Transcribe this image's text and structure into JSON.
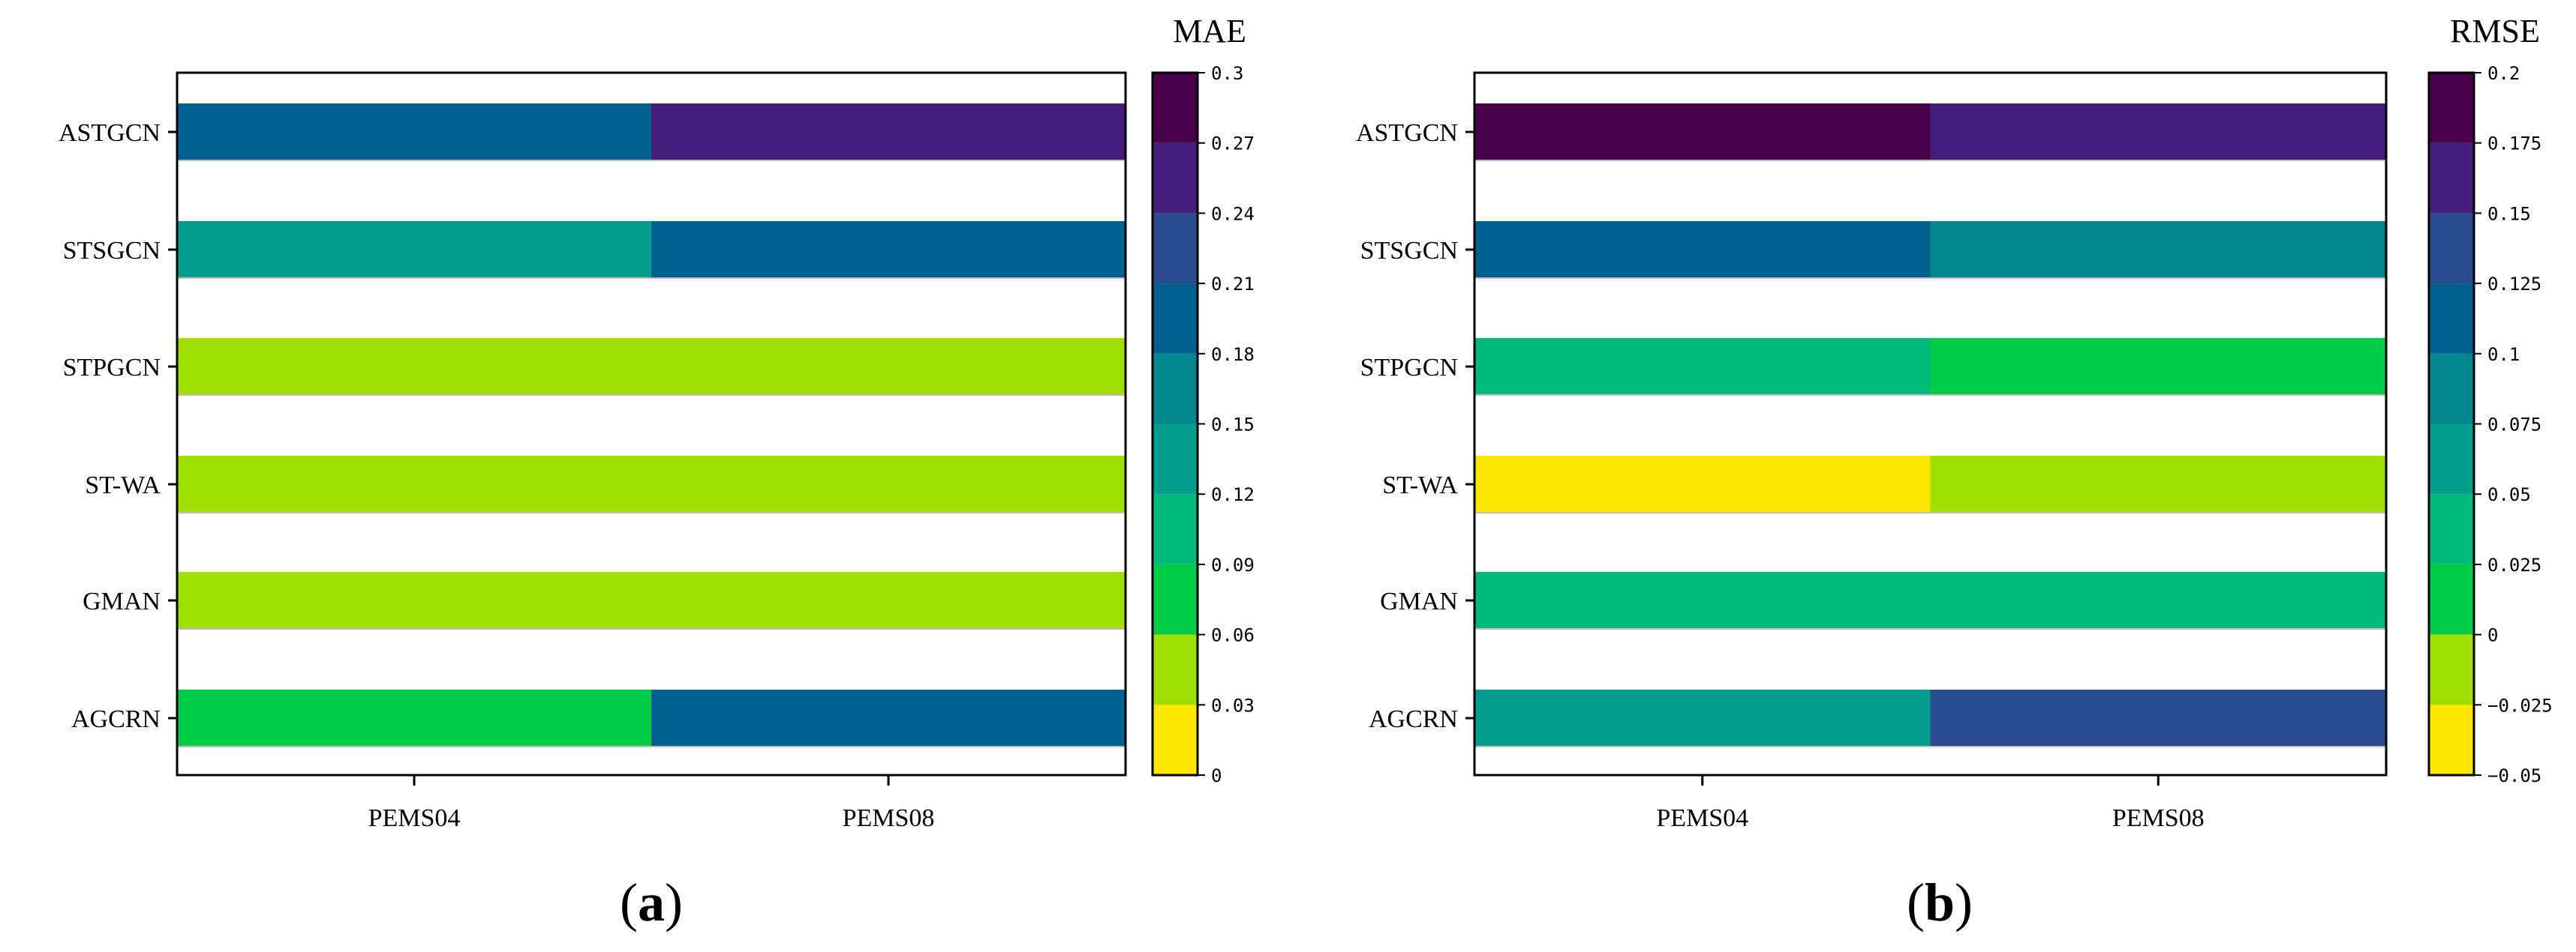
{
  "chart_data": [
    {
      "type": "heatmap",
      "panel": "a",
      "panel_label": "(a)",
      "panel_open": "(",
      "panel_letter": "a",
      "panel_close": ")",
      "colorbar_title": "MAE",
      "rows": [
        "ASTGCN",
        "STSGCN",
        "STPGCN",
        "ST-WA",
        "GMAN",
        "AGCRN"
      ],
      "columns": [
        "PEMS04",
        "PEMS08"
      ],
      "values": [
        [
          0.195,
          0.255
        ],
        [
          0.135,
          0.195
        ],
        [
          0.045,
          0.045
        ],
        [
          0.045,
          0.045
        ],
        [
          0.045,
          0.045
        ],
        [
          0.075,
          0.195
        ]
      ],
      "colorbar": {
        "min": 0,
        "max": 0.3,
        "levels": 10,
        "tick_values": [
          0,
          0.03,
          0.06,
          0.09,
          0.12,
          0.15,
          0.18,
          0.21,
          0.24,
          0.27,
          0.3
        ],
        "tick_labels": [
          "0",
          "0.03",
          "0.06",
          "0.09",
          "0.12",
          "0.15",
          "0.18",
          "0.21",
          "0.24",
          "0.27",
          "0.3"
        ]
      }
    },
    {
      "type": "heatmap",
      "panel": "b",
      "panel_label": "(b)",
      "panel_open": "(",
      "panel_letter": "b",
      "panel_close": ")",
      "colorbar_title": "RMSE",
      "rows": [
        "ASTGCN",
        "STSGCN",
        "STPGCN",
        "ST-WA",
        "GMAN",
        "AGCRN"
      ],
      "columns": [
        "PEMS04",
        "PEMS08"
      ],
      "values": [
        [
          0.1875,
          0.1625
        ],
        [
          0.1125,
          0.0875
        ],
        [
          0.0375,
          0.0125
        ],
        [
          -0.0375,
          -0.0125
        ],
        [
          0.0375,
          0.0375
        ],
        [
          0.0625,
          0.1375
        ]
      ],
      "colorbar": {
        "min": -0.05,
        "max": 0.2,
        "levels": 10,
        "tick_values": [
          -0.05,
          -0.025,
          0,
          0.025,
          0.05,
          0.075,
          0.1,
          0.125,
          0.15,
          0.175,
          0.2
        ],
        "tick_labels": [
          "−0.05",
          "−0.025",
          "0",
          "0.025",
          "0.05",
          "0.075",
          "0.1",
          "0.125",
          "0.15",
          "0.175",
          "0.2"
        ]
      }
    }
  ],
  "colors": {
    "viridis_levels": [
      "#fde725",
      "#a0da39",
      "#4ac16d",
      "#1fa187",
      "#277f8e",
      "#365c8d",
      "#46327e",
      "#440154"
    ],
    "ten_level_palette": [
      "#fde700",
      "#a0df00",
      "#00cc4a",
      "#00b87a",
      "#049c8d",
      "#03878d",
      "#005f8c",
      "#2c4a8e",
      "#441e7a",
      "#48004c"
    ],
    "axis_line": "#000000",
    "cell_separator": "#bfbfbf"
  }
}
